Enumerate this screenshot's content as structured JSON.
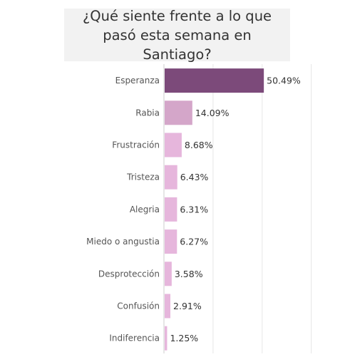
{
  "chart_data": {
    "type": "bar",
    "orientation": "horizontal",
    "title": "¿Qué siente frente a lo que pasó esta semana en Santiago?",
    "categories": [
      "Esperanza",
      "Rabia",
      "Frustración",
      "Tristeza",
      "Alegria",
      "Miedo o angustia",
      "Desprotección",
      "Confusión",
      "Indiferencia"
    ],
    "values": [
      50.49,
      14.09,
      8.68,
      6.43,
      6.31,
      6.27,
      3.58,
      2.91,
      1.25
    ],
    "value_labels": [
      "50.49%",
      "14.09%",
      "8.68%",
      "6.43%",
      "6.31%",
      "6.27%",
      "3.58%",
      "2.91%",
      "1.25%"
    ],
    "unit": "%",
    "xlim": [
      0,
      100
    ],
    "grid": true,
    "colors": {
      "strong": "#7c4a7a",
      "medium": "#d4a6c9",
      "light": "#e6b6dc",
      "grid": "#e6e6e6",
      "axis": "#cccccc"
    }
  }
}
